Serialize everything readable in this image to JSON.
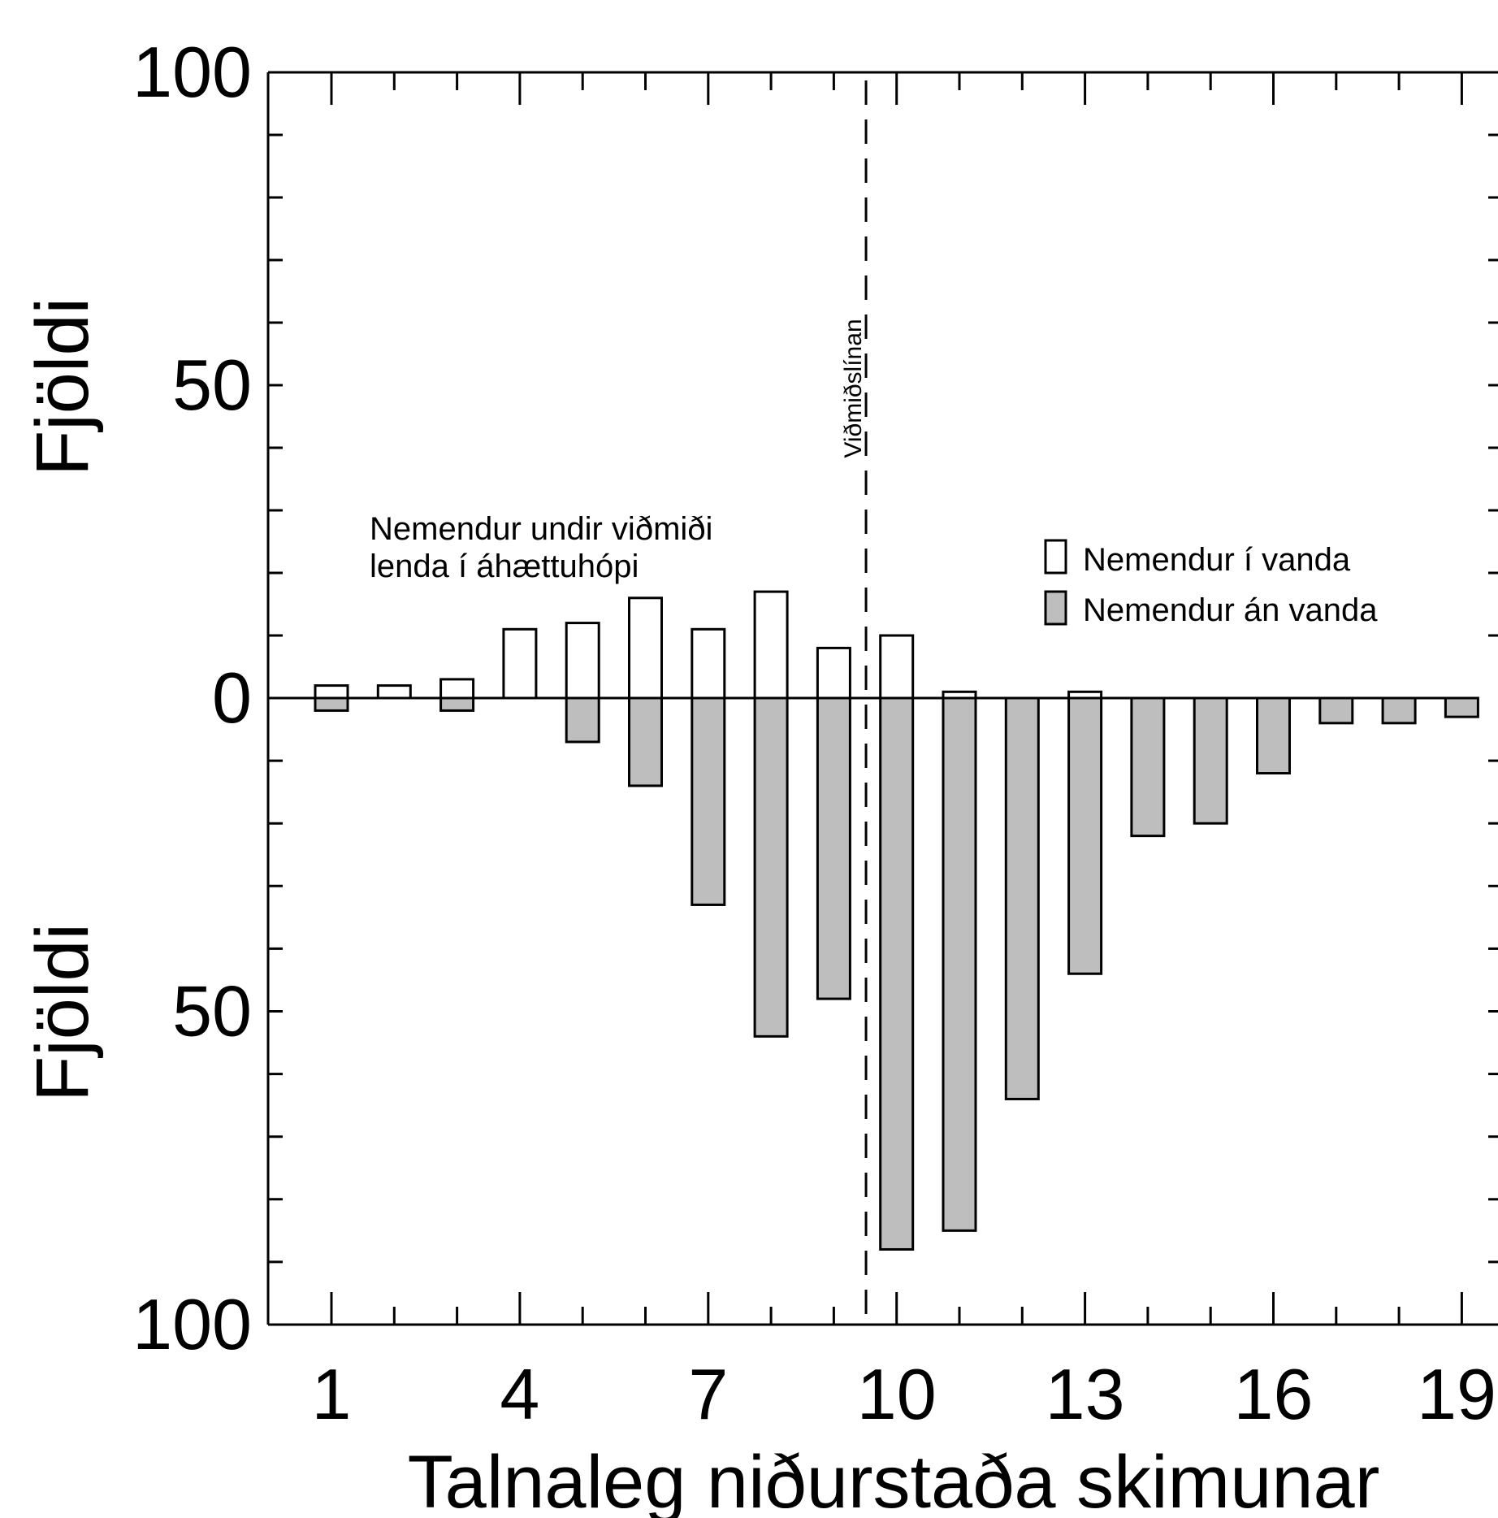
{
  "chart_data": {
    "type": "bar",
    "title": "",
    "xlabel": "Talnaleg niðurstaða skimunar",
    "ylabel_top": "Fjöldi",
    "ylabel_bottom": "Fjöldi",
    "x": [
      1,
      2,
      3,
      4,
      5,
      6,
      7,
      8,
      9,
      10,
      11,
      12,
      13,
      14,
      15,
      16,
      17,
      18,
      19
    ],
    "x_tick_labels": [
      "1",
      "4",
      "7",
      "10",
      "13",
      "16",
      "19"
    ],
    "x_tick_values": [
      1,
      4,
      7,
      10,
      13,
      16,
      19
    ],
    "y_tick_labels_top": [
      "100",
      "50",
      "0"
    ],
    "y_tick_labels_bottom": [
      "50",
      "100"
    ],
    "ylim_top": [
      0,
      100
    ],
    "ylim_bottom": [
      0,
      100
    ],
    "threshold": {
      "x": 9.5,
      "label": "Viðmiðslínan"
    },
    "annotation": {
      "lines": [
        "Nemendur undir viðmiði",
        "lenda í áhættuhópi"
      ]
    },
    "legend_position": "top-right",
    "series": [
      {
        "name": "Nemendur í vanda",
        "direction": "up",
        "color": "#ffffff",
        "values": [
          2,
          2,
          3,
          11,
          12,
          16,
          11,
          17,
          8,
          10,
          1,
          0,
          1,
          0,
          0,
          0,
          0,
          0,
          0
        ]
      },
      {
        "name": "Nemendur án vanda",
        "direction": "down",
        "color": "#bebebe",
        "values": [
          2,
          0,
          2,
          0,
          7,
          14,
          33,
          54,
          48,
          88,
          85,
          64,
          44,
          22,
          20,
          12,
          4,
          4,
          3
        ]
      }
    ],
    "grid": false
  }
}
